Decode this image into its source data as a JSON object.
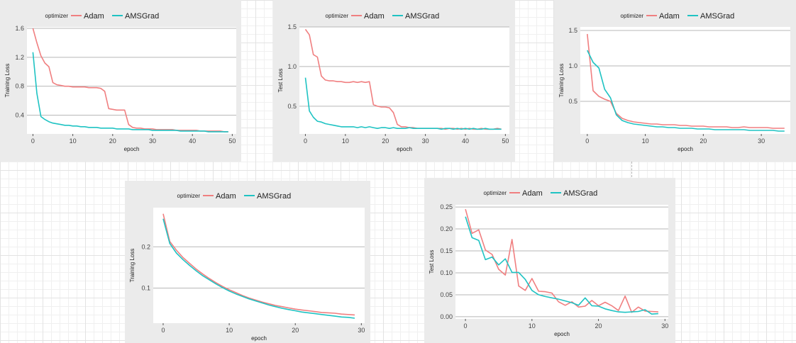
{
  "colors": {
    "adam": "#f07f80",
    "amsgrad": "#1fc3c3",
    "grid": "#b7b7b7",
    "panel_bg": "#ebebeb"
  },
  "legend": {
    "title": "optimizer",
    "items": [
      "Adam",
      "AMSGrad"
    ]
  },
  "chart_data": [
    {
      "type": "line",
      "xlabel": "epoch",
      "ylabel": "Training Loss",
      "xlim": [
        -1.5,
        51
      ],
      "ylim": [
        0.14,
        1.62
      ],
      "xticks": [
        0,
        10,
        20,
        30,
        40,
        50
      ],
      "yticks": [
        0.4,
        0.8,
        1.2,
        1.6
      ],
      "ytick_labels": [
        "0.4",
        "0.8",
        "1.2",
        "1.6"
      ],
      "series": [
        {
          "name": "Adam",
          "x": [
            0,
            1,
            2,
            3,
            4,
            5,
            6,
            7,
            8,
            9,
            10,
            11,
            12,
            13,
            14,
            15,
            16,
            17,
            18,
            19,
            20,
            21,
            22,
            23,
            24,
            25,
            26,
            27,
            28,
            29,
            30,
            31,
            32,
            33,
            34,
            35,
            36,
            37,
            38,
            39,
            40,
            41,
            42,
            43,
            44,
            45,
            46,
            47,
            48,
            49
          ],
          "y": [
            1.6,
            1.4,
            1.22,
            1.12,
            1.07,
            0.85,
            0.82,
            0.81,
            0.8,
            0.8,
            0.79,
            0.79,
            0.79,
            0.79,
            0.78,
            0.78,
            0.78,
            0.77,
            0.73,
            0.49,
            0.48,
            0.47,
            0.47,
            0.47,
            0.27,
            0.23,
            0.22,
            0.22,
            0.21,
            0.21,
            0.21,
            0.2,
            0.2,
            0.2,
            0.2,
            0.2,
            0.19,
            0.19,
            0.19,
            0.19,
            0.19,
            0.19,
            0.18,
            0.18,
            0.18,
            0.18,
            0.18,
            0.18,
            0.17,
            0.17
          ]
        },
        {
          "name": "AMSGrad",
          "x": [
            0,
            1,
            2,
            3,
            4,
            5,
            6,
            7,
            8,
            9,
            10,
            11,
            12,
            13,
            14,
            15,
            16,
            17,
            18,
            19,
            20,
            21,
            22,
            23,
            24,
            25,
            26,
            27,
            28,
            29,
            30,
            31,
            32,
            33,
            34,
            35,
            36,
            37,
            38,
            39,
            40,
            41,
            42,
            43,
            44,
            45,
            46,
            47,
            48,
            49
          ],
          "y": [
            1.27,
            0.7,
            0.38,
            0.34,
            0.31,
            0.29,
            0.28,
            0.27,
            0.26,
            0.26,
            0.25,
            0.25,
            0.24,
            0.24,
            0.23,
            0.23,
            0.23,
            0.22,
            0.22,
            0.22,
            0.22,
            0.21,
            0.21,
            0.21,
            0.21,
            0.2,
            0.2,
            0.2,
            0.2,
            0.2,
            0.19,
            0.19,
            0.19,
            0.19,
            0.19,
            0.19,
            0.19,
            0.18,
            0.18,
            0.18,
            0.18,
            0.18,
            0.18,
            0.18,
            0.17,
            0.17,
            0.17,
            0.17,
            0.17,
            0.17
          ]
        }
      ]
    },
    {
      "type": "line",
      "xlabel": "epoch",
      "ylabel": "Test Loss",
      "xlim": [
        -1.5,
        51
      ],
      "ylim": [
        0.15,
        1.5
      ],
      "xticks": [
        0,
        10,
        20,
        30,
        40,
        50
      ],
      "yticks": [
        0.5,
        1.0,
        1.5
      ],
      "ytick_labels": [
        "0.5",
        "1.0",
        "1.5"
      ],
      "series": [
        {
          "name": "Adam",
          "x": [
            0,
            1,
            2,
            3,
            4,
            5,
            6,
            7,
            8,
            9,
            10,
            11,
            12,
            13,
            14,
            15,
            16,
            17,
            18,
            19,
            20,
            21,
            22,
            23,
            24,
            25,
            26,
            27,
            28,
            29,
            30,
            31,
            32,
            33,
            34,
            35,
            36,
            37,
            38,
            39,
            40,
            41,
            42,
            43,
            44,
            45,
            46,
            47,
            48,
            49
          ],
          "y": [
            1.47,
            1.4,
            1.15,
            1.12,
            0.88,
            0.83,
            0.82,
            0.82,
            0.81,
            0.81,
            0.8,
            0.8,
            0.81,
            0.8,
            0.81,
            0.8,
            0.81,
            0.52,
            0.5,
            0.49,
            0.49,
            0.48,
            0.42,
            0.27,
            0.24,
            0.24,
            0.23,
            0.23,
            0.22,
            0.22,
            0.22,
            0.22,
            0.22,
            0.22,
            0.22,
            0.21,
            0.22,
            0.22,
            0.21,
            0.22,
            0.21,
            0.22,
            0.21,
            0.21,
            0.22,
            0.21,
            0.21,
            0.21,
            0.22,
            0.21
          ]
        },
        {
          "name": "AMSGrad",
          "x": [
            0,
            1,
            2,
            3,
            4,
            5,
            6,
            7,
            8,
            9,
            10,
            11,
            12,
            13,
            14,
            15,
            16,
            17,
            18,
            19,
            20,
            21,
            22,
            23,
            24,
            25,
            26,
            27,
            28,
            29,
            30,
            31,
            32,
            33,
            34,
            35,
            36,
            37,
            38,
            39,
            40,
            41,
            42,
            43,
            44,
            45,
            46,
            47,
            48,
            49
          ],
          "y": [
            0.86,
            0.44,
            0.36,
            0.31,
            0.3,
            0.28,
            0.27,
            0.26,
            0.25,
            0.24,
            0.24,
            0.24,
            0.24,
            0.23,
            0.24,
            0.23,
            0.24,
            0.23,
            0.22,
            0.23,
            0.23,
            0.22,
            0.23,
            0.22,
            0.22,
            0.22,
            0.23,
            0.22,
            0.22,
            0.22,
            0.22,
            0.22,
            0.22,
            0.22,
            0.21,
            0.22,
            0.22,
            0.21,
            0.22,
            0.21,
            0.22,
            0.21,
            0.22,
            0.21,
            0.21,
            0.22,
            0.21,
            0.21,
            0.21,
            0.21
          ]
        }
      ]
    },
    {
      "type": "line",
      "xlabel": "epoch",
      "ylabel": "Training Loss",
      "xlim": [
        -1.2,
        35
      ],
      "ylim": [
        0.04,
        1.55
      ],
      "xticks": [
        0,
        10,
        20,
        30
      ],
      "yticks": [
        0.5,
        1.0,
        1.5
      ],
      "ytick_labels": [
        "0.5",
        "1.0",
        "1.5"
      ],
      "series": [
        {
          "name": "Adam",
          "x": [
            0,
            1,
            2,
            3,
            4,
            5,
            6,
            7,
            8,
            9,
            10,
            11,
            12,
            13,
            14,
            15,
            16,
            17,
            18,
            19,
            20,
            21,
            22,
            23,
            24,
            25,
            26,
            27,
            28,
            29,
            30,
            31,
            32,
            33,
            34
          ],
          "y": [
            1.45,
            0.65,
            0.57,
            0.53,
            0.5,
            0.33,
            0.26,
            0.23,
            0.21,
            0.2,
            0.19,
            0.18,
            0.18,
            0.17,
            0.17,
            0.17,
            0.16,
            0.16,
            0.15,
            0.15,
            0.15,
            0.14,
            0.14,
            0.14,
            0.14,
            0.13,
            0.13,
            0.14,
            0.13,
            0.13,
            0.13,
            0.13,
            0.12,
            0.12,
            0.12
          ]
        },
        {
          "name": "AMSGrad",
          "x": [
            0,
            1,
            2,
            3,
            4,
            5,
            6,
            7,
            8,
            9,
            10,
            11,
            12,
            13,
            14,
            15,
            16,
            17,
            18,
            19,
            20,
            21,
            22,
            23,
            24,
            25,
            26,
            27,
            28,
            29,
            30,
            31,
            32,
            33,
            34
          ],
          "y": [
            1.22,
            1.05,
            0.97,
            0.67,
            0.55,
            0.31,
            0.23,
            0.2,
            0.18,
            0.17,
            0.16,
            0.15,
            0.14,
            0.14,
            0.13,
            0.13,
            0.12,
            0.12,
            0.12,
            0.11,
            0.11,
            0.11,
            0.1,
            0.1,
            0.1,
            0.1,
            0.1,
            0.1,
            0.09,
            0.09,
            0.09,
            0.09,
            0.09,
            0.08,
            0.08
          ]
        }
      ]
    },
    {
      "type": "line",
      "xlabel": "epoch",
      "ylabel": "Training Loss",
      "xlim": [
        -1.5,
        30.5
      ],
      "ylim": [
        0.015,
        0.295
      ],
      "xticks": [
        0,
        10,
        20,
        30
      ],
      "yticks": [
        0.1,
        0.2
      ],
      "ytick_labels": [
        "0.1",
        "0.2"
      ],
      "series": [
        {
          "name": "Adam",
          "x": [
            0,
            1,
            2,
            3,
            4,
            5,
            6,
            7,
            8,
            9,
            10,
            11,
            12,
            13,
            14,
            15,
            16,
            17,
            18,
            19,
            20,
            21,
            22,
            23,
            24,
            25,
            26,
            27,
            28,
            29
          ],
          "y": [
            0.28,
            0.213,
            0.192,
            0.174,
            0.16,
            0.146,
            0.134,
            0.123,
            0.113,
            0.104,
            0.096,
            0.089,
            0.082,
            0.076,
            0.071,
            0.066,
            0.062,
            0.058,
            0.055,
            0.052,
            0.049,
            0.047,
            0.045,
            0.043,
            0.041,
            0.04,
            0.039,
            0.037,
            0.036,
            0.035
          ]
        },
        {
          "name": "AMSGrad",
          "x": [
            0,
            1,
            2,
            3,
            4,
            5,
            6,
            7,
            8,
            9,
            10,
            11,
            12,
            13,
            14,
            15,
            16,
            17,
            18,
            19,
            20,
            21,
            22,
            23,
            24,
            25,
            26,
            27,
            28,
            29
          ],
          "y": [
            0.268,
            0.208,
            0.185,
            0.169,
            0.155,
            0.142,
            0.13,
            0.12,
            0.11,
            0.101,
            0.093,
            0.086,
            0.08,
            0.074,
            0.069,
            0.064,
            0.059,
            0.055,
            0.051,
            0.048,
            0.045,
            0.042,
            0.04,
            0.038,
            0.036,
            0.034,
            0.032,
            0.03,
            0.029,
            0.027
          ]
        }
      ]
    },
    {
      "type": "line",
      "xlabel": "epoch",
      "ylabel": "Test Loss",
      "xlim": [
        -1.5,
        30.5
      ],
      "ylim": [
        -0.005,
        0.255
      ],
      "xticks": [
        0,
        10,
        20,
        30
      ],
      "yticks": [
        0,
        0.05,
        0.1,
        0.15,
        0.2,
        0.25
      ],
      "ytick_labels": [
        "0.00",
        "0.05",
        "0.10",
        "0.15",
        "0.20",
        "0.25"
      ],
      "series": [
        {
          "name": "Adam",
          "x": [
            0,
            1,
            2,
            3,
            4,
            5,
            6,
            7,
            8,
            9,
            10,
            11,
            12,
            13,
            14,
            15,
            16,
            17,
            18,
            19,
            20,
            21,
            22,
            23,
            24,
            25,
            26,
            27,
            28,
            29
          ],
          "y": [
            0.245,
            0.19,
            0.198,
            0.152,
            0.142,
            0.108,
            0.095,
            0.176,
            0.07,
            0.06,
            0.087,
            0.058,
            0.057,
            0.054,
            0.034,
            0.026,
            0.034,
            0.022,
            0.024,
            0.037,
            0.025,
            0.033,
            0.025,
            0.014,
            0.047,
            0.01,
            0.022,
            0.013,
            0.012,
            0.011
          ]
        },
        {
          "name": "AMSGrad",
          "x": [
            0,
            1,
            2,
            3,
            4,
            5,
            6,
            7,
            8,
            9,
            10,
            11,
            12,
            13,
            14,
            15,
            16,
            17,
            18,
            19,
            20,
            21,
            22,
            23,
            24,
            25,
            26,
            27,
            28,
            29
          ],
          "y": [
            0.228,
            0.18,
            0.174,
            0.13,
            0.136,
            0.118,
            0.132,
            0.101,
            0.101,
            0.085,
            0.06,
            0.05,
            0.046,
            0.043,
            0.04,
            0.036,
            0.032,
            0.026,
            0.043,
            0.025,
            0.024,
            0.018,
            0.014,
            0.011,
            0.01,
            0.011,
            0.012,
            0.016,
            0.006,
            0.007
          ]
        }
      ]
    }
  ]
}
